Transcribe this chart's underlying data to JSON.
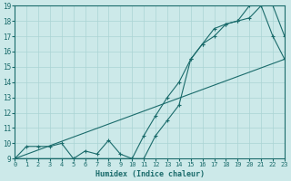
{
  "xlabel": "Humidex (Indice chaleur)",
  "xlim": [
    0,
    23
  ],
  "ylim": [
    9,
    19
  ],
  "xticks": [
    0,
    1,
    2,
    3,
    4,
    5,
    6,
    7,
    8,
    9,
    10,
    11,
    12,
    13,
    14,
    15,
    16,
    17,
    18,
    19,
    20,
    21,
    22,
    23
  ],
  "yticks": [
    9,
    10,
    11,
    12,
    13,
    14,
    15,
    16,
    17,
    18,
    19
  ],
  "bg_color": "#cce9e9",
  "line_color": "#1a6b6b",
  "grid_color": "#aad4d4",
  "line1_x": [
    0,
    1,
    2,
    3,
    4,
    5,
    6,
    7,
    8,
    9,
    10,
    11,
    12,
    13,
    14,
    15,
    16,
    17,
    18,
    19,
    20,
    21,
    22,
    23
  ],
  "line1_y": [
    9,
    9.8,
    9.8,
    9.8,
    10,
    9,
    9.5,
    9.3,
    10.2,
    9.3,
    9,
    9,
    10.5,
    11.5,
    12.5,
    15.5,
    16.5,
    17,
    17.8,
    18,
    19,
    19,
    17,
    15.5
  ],
  "line2_x": [
    0,
    23
  ],
  "line2_y": [
    9,
    15.5
  ],
  "line3_x": [
    0,
    10,
    11,
    12,
    13,
    14,
    15,
    16,
    17,
    18,
    19,
    20,
    21,
    22,
    23
  ],
  "line3_y": [
    9,
    9,
    10.5,
    11.8,
    13,
    14,
    15.5,
    16.5,
    17.5,
    17.8,
    18,
    18.2,
    19,
    19,
    17
  ]
}
